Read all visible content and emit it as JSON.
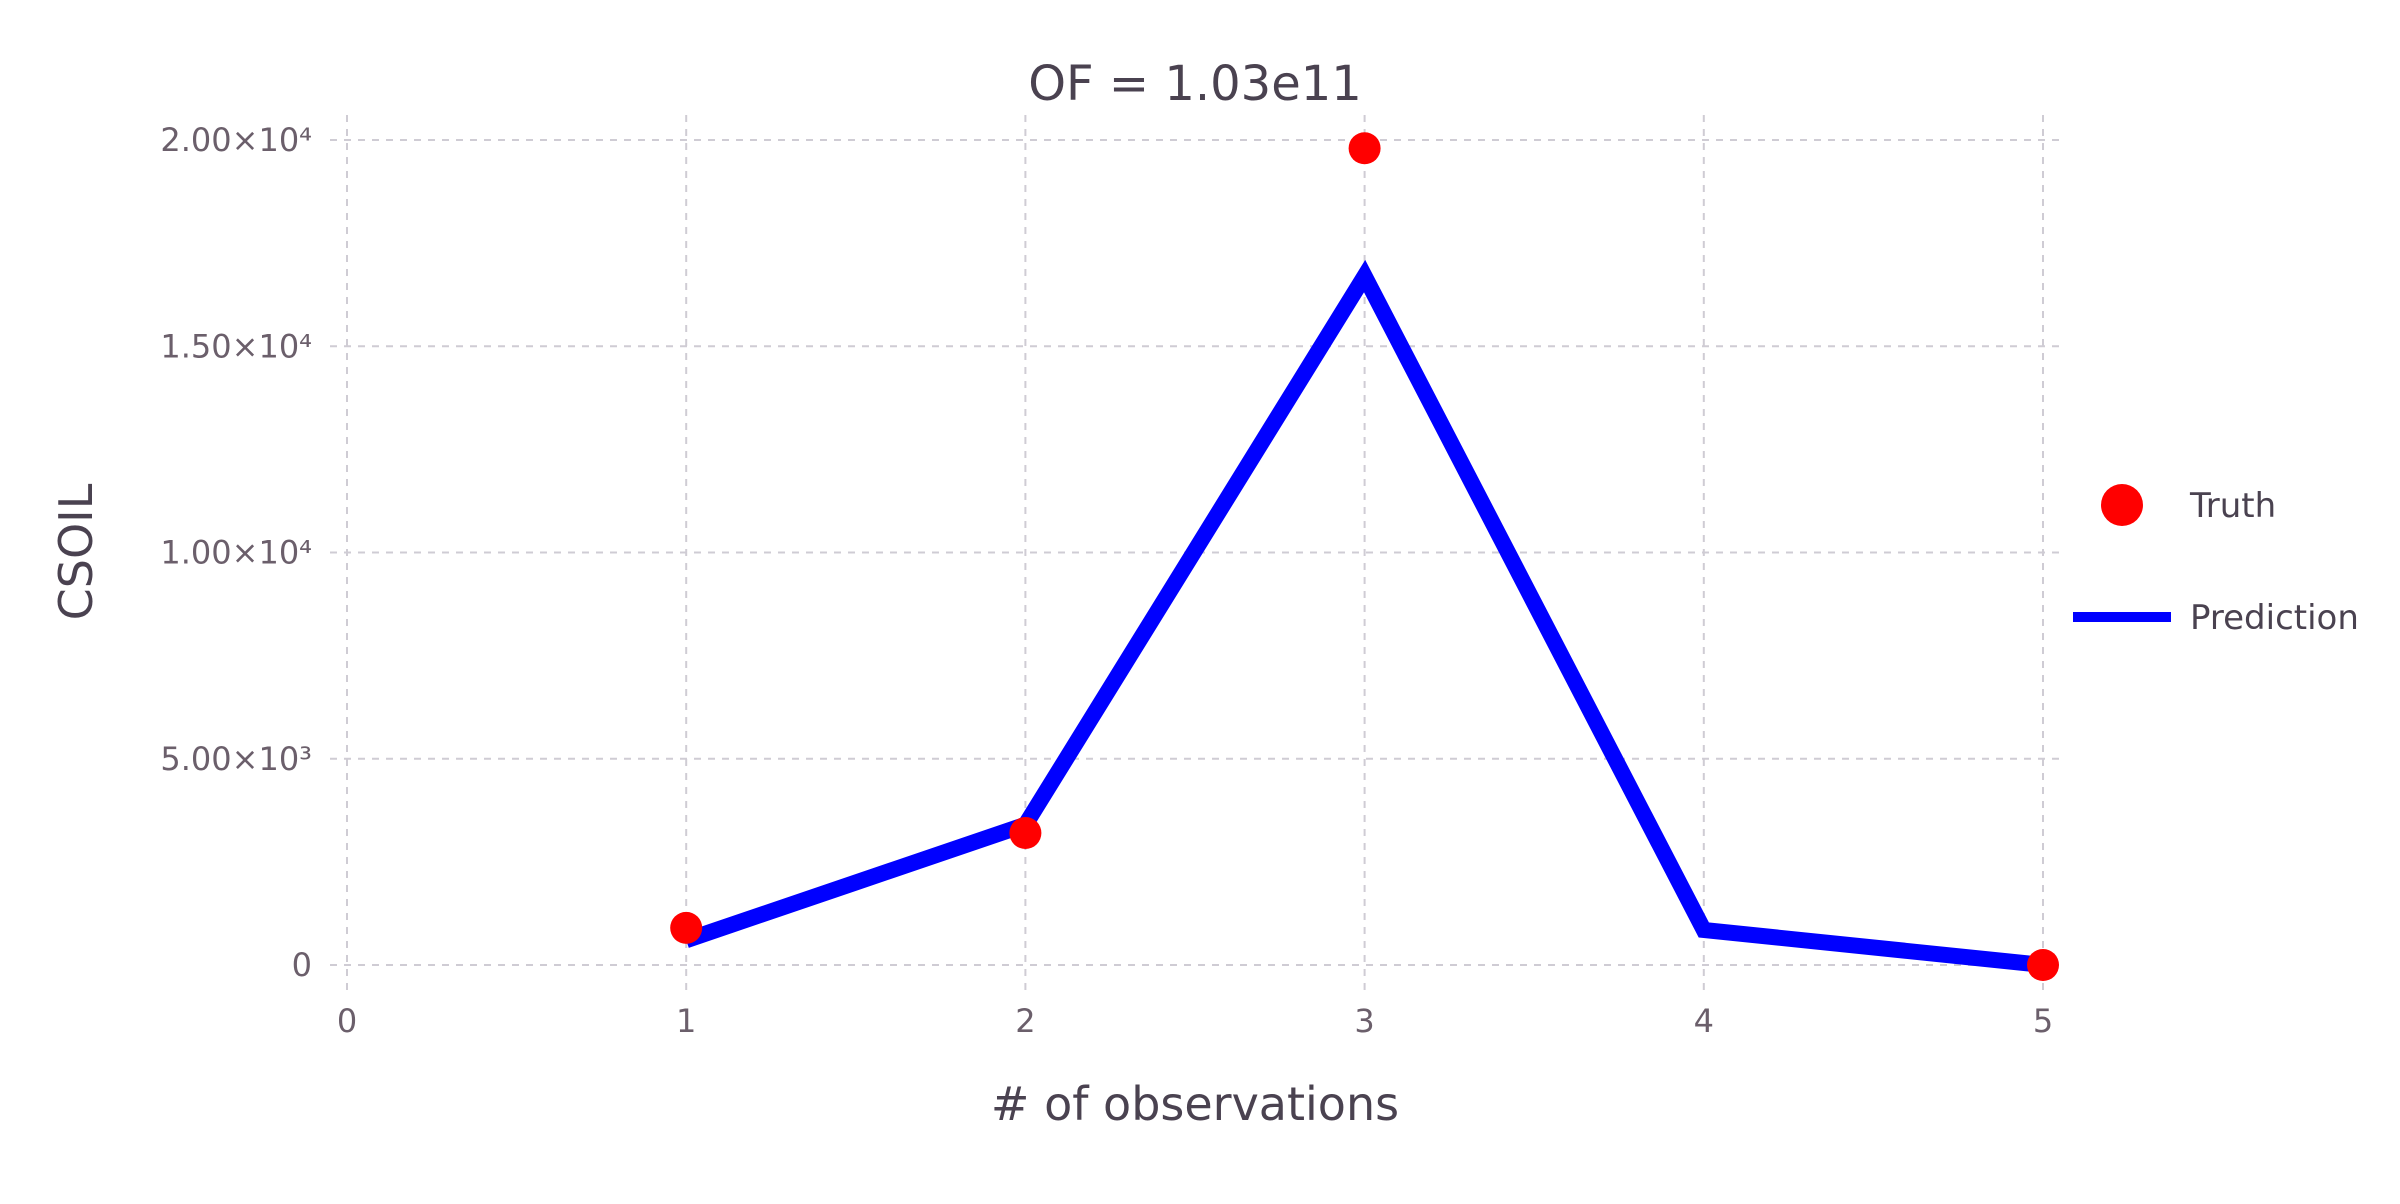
{
  "chart_data": {
    "type": "line",
    "title": "OF = 1.03e11",
    "xlabel": "# of observations",
    "ylabel": "CSOIL",
    "xlim": [
      0,
      5
    ],
    "ylim": [
      0,
      20000
    ],
    "x_ticks": [
      0,
      1,
      2,
      3,
      4,
      5
    ],
    "x_tick_labels": [
      "0",
      "1",
      "2",
      "3",
      "4",
      "5"
    ],
    "y_ticks": [
      0,
      5000,
      10000,
      15000,
      20000
    ],
    "y_tick_labels": [
      "0",
      "5.00×10³",
      "1.00×10⁴",
      "1.50×10⁴",
      "2.00×10⁴"
    ],
    "grid": true,
    "legend_position": "right",
    "series": [
      {
        "name": "Truth",
        "kind": "scatter",
        "color": "#ff0000",
        "x": [
          1,
          2,
          3,
          5
        ],
        "y": [
          900,
          3200,
          19800,
          0
        ]
      },
      {
        "name": "Prediction",
        "kind": "line",
        "color": "#0000ff",
        "x": [
          1,
          2,
          3,
          4,
          5
        ],
        "y": [
          600,
          3400,
          16700,
          850,
          0
        ]
      }
    ]
  }
}
